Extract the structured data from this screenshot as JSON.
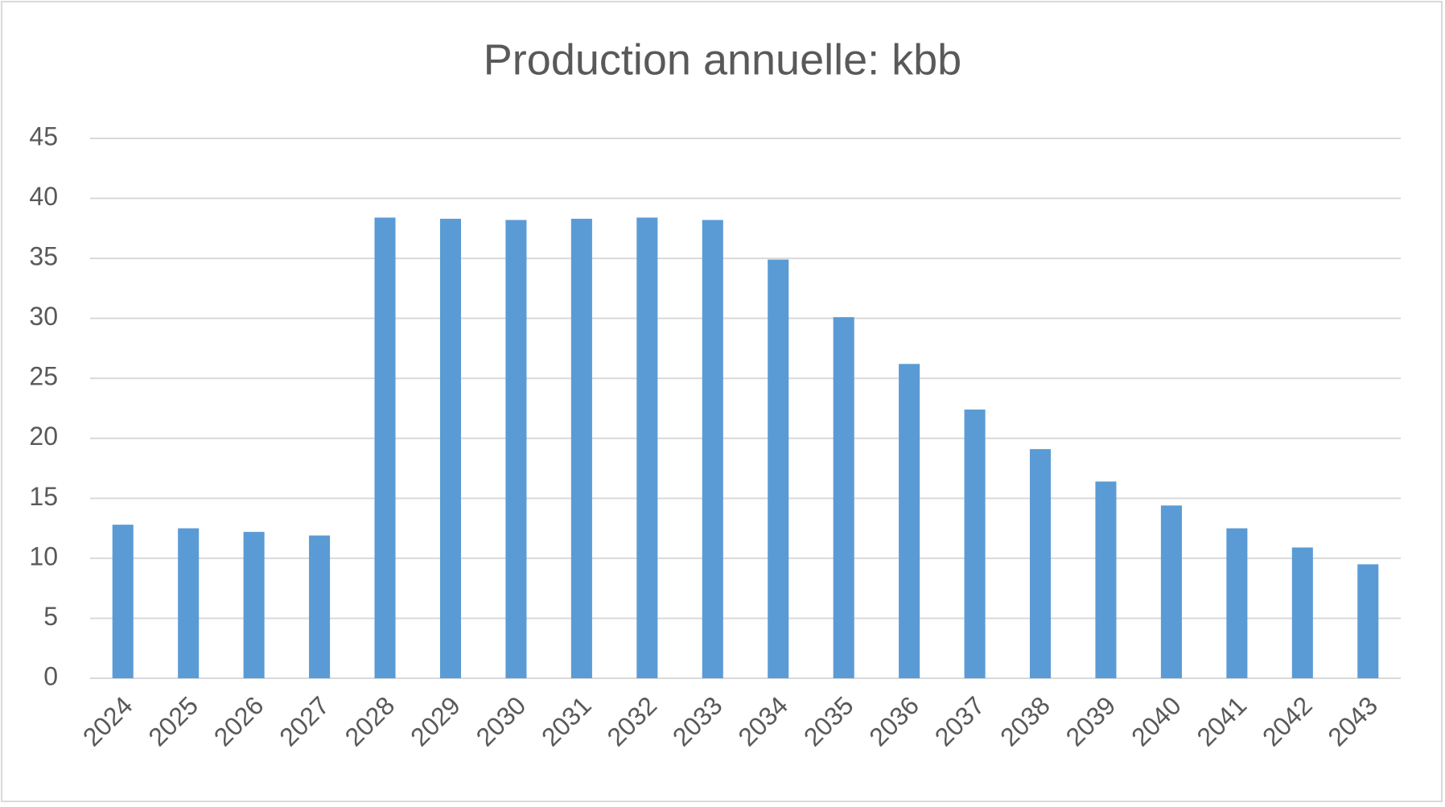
{
  "chart_data": {
    "type": "bar",
    "title": "Production annuelle: kbb",
    "categories": [
      "2024",
      "2025",
      "2026",
      "2027",
      "2028",
      "2029",
      "2030",
      "2031",
      "2032",
      "2033",
      "2034",
      "2035",
      "2036",
      "2037",
      "2038",
      "2039",
      "2040",
      "2041",
      "2042",
      "2043"
    ],
    "values": [
      12.8,
      12.5,
      12.2,
      11.9,
      38.4,
      38.3,
      38.2,
      38.3,
      38.4,
      38.2,
      34.9,
      30.1,
      26.2,
      22.4,
      19.1,
      16.4,
      14.4,
      12.5,
      10.9,
      9.5
    ],
    "color": "#5b9bd5",
    "ylim": [
      0,
      45
    ],
    "yticks": [
      0,
      5,
      10,
      15,
      20,
      25,
      30,
      35,
      40,
      45
    ],
    "grid": true
  }
}
